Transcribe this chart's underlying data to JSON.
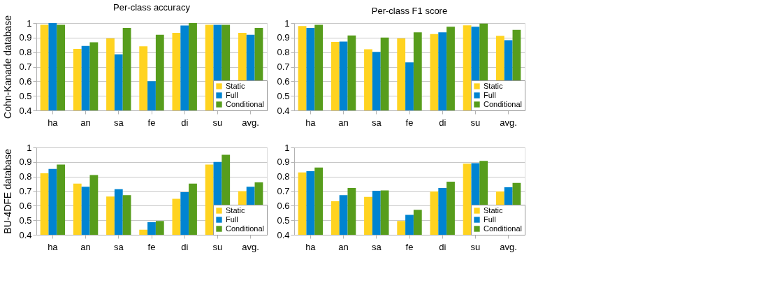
{
  "chart_data": [
    {
      "type": "bar",
      "title": "Per-class accuracy",
      "ylabel": "Cohn-Kanade database",
      "categories": [
        "ha",
        "an",
        "sa",
        "fe",
        "di",
        "su",
        "avg."
      ],
      "series": [
        {
          "name": "Static",
          "color": "#ffd320",
          "values": [
            0.988,
            0.822,
            0.895,
            0.84,
            0.933,
            0.988,
            0.933
          ]
        },
        {
          "name": "Full",
          "color": "#0084d1",
          "values": [
            1.0,
            0.843,
            0.785,
            0.6,
            0.983,
            0.988,
            0.92
          ]
        },
        {
          "name": "Conditional",
          "color": "#579d1c",
          "values": [
            0.988,
            0.868,
            0.967,
            0.92,
            1.0,
            0.988,
            0.967
          ]
        }
      ],
      "ylim": [
        0.4,
        1
      ],
      "yticks": [
        0.4,
        0.5,
        0.6,
        0.7,
        0.8,
        0.9,
        1
      ],
      "grid": "y",
      "legend": "bottom right"
    },
    {
      "type": "bar",
      "title": "Per-class F1 score",
      "categories": [
        "ha",
        "an",
        "sa",
        "fe",
        "di",
        "su",
        "avg."
      ],
      "series": [
        {
          "name": "Static",
          "color": "#ffd320",
          "values": [
            0.98,
            0.87,
            0.82,
            0.895,
            0.925,
            0.985,
            0.912
          ]
        },
        {
          "name": "Full",
          "color": "#0084d1",
          "values": [
            0.967,
            0.873,
            0.802,
            0.73,
            0.937,
            0.975,
            0.882
          ]
        },
        {
          "name": "Conditional",
          "color": "#579d1c",
          "values": [
            0.988,
            0.915,
            0.9,
            0.937,
            0.975,
            0.997,
            0.953
          ]
        }
      ],
      "ylim": [
        0.4,
        1
      ],
      "yticks": [
        0.4,
        0.5,
        0.6,
        0.7,
        0.8,
        0.9,
        1
      ],
      "grid": "y",
      "legend": "bottom right"
    },
    {
      "type": "bar",
      "ylabel": "BU-4DFE database",
      "categories": [
        "ha",
        "an",
        "sa",
        "fe",
        "di",
        "su",
        "avg."
      ],
      "series": [
        {
          "name": "Static",
          "color": "#ffd320",
          "values": [
            0.823,
            0.752,
            0.663,
            0.435,
            0.647,
            0.883,
            0.7
          ]
        },
        {
          "name": "Full",
          "color": "#0084d1",
          "values": [
            0.853,
            0.73,
            0.713,
            0.487,
            0.693,
            0.9,
            0.73
          ]
        },
        {
          "name": "Conditional",
          "color": "#579d1c",
          "values": [
            0.883,
            0.81,
            0.672,
            0.495,
            0.752,
            0.95,
            0.76
          ]
        }
      ],
      "ylim": [
        0.4,
        1
      ],
      "yticks": [
        0.4,
        0.5,
        0.6,
        0.7,
        0.8,
        0.9,
        1
      ],
      "grid": "y",
      "legend": "bottom right"
    },
    {
      "type": "bar",
      "categories": [
        "ha",
        "an",
        "sa",
        "fe",
        "di",
        "su",
        "avg."
      ],
      "series": [
        {
          "name": "Static",
          "color": "#ffd320",
          "values": [
            0.828,
            0.63,
            0.66,
            0.495,
            0.698,
            0.888,
            0.698
          ]
        },
        {
          "name": "Full",
          "color": "#0084d1",
          "values": [
            0.837,
            0.672,
            0.702,
            0.537,
            0.722,
            0.892,
            0.727
          ]
        },
        {
          "name": "Conditional",
          "color": "#579d1c",
          "values": [
            0.862,
            0.722,
            0.705,
            0.572,
            0.765,
            0.908,
            0.757
          ]
        }
      ],
      "ylim": [
        0.4,
        1
      ],
      "yticks": [
        0.4,
        0.5,
        0.6,
        0.7,
        0.8,
        0.9,
        1
      ],
      "grid": "y",
      "legend": "bottom right"
    }
  ]
}
